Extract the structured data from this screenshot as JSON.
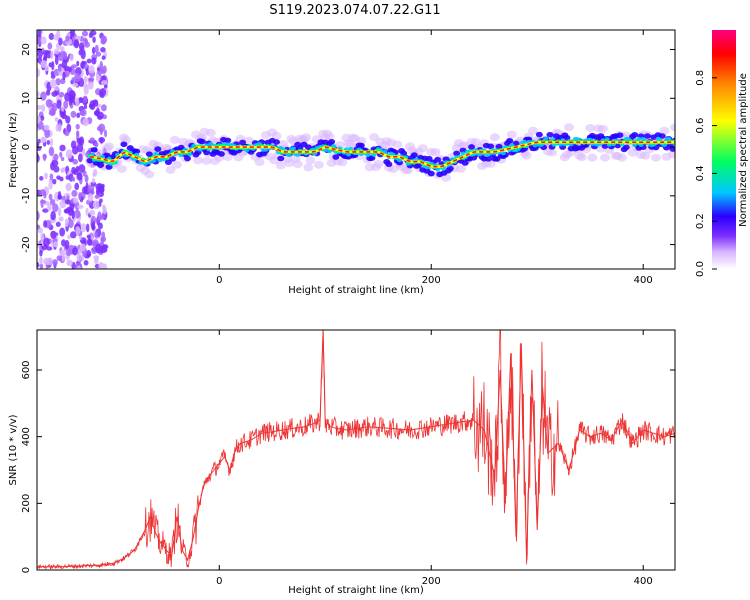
{
  "figure_title": "S119.2023.074.07.22.G11",
  "chart_data": [
    {
      "type": "heatmap",
      "xlabel": "Height of straight line (km)",
      "ylabel": "Frequency (Hz)",
      "xlim": [
        -172,
        430
      ],
      "ylim": [
        -25,
        24
      ],
      "xticks": [
        0,
        200,
        400
      ],
      "yticks": [
        -20,
        -10,
        0,
        10,
        20
      ],
      "grid": false,
      "colorbar": {
        "label": "Normalized spectral amplitude",
        "range": [
          0,
          1
        ],
        "ticks": [
          0.0,
          0.2,
          0.4,
          0.6,
          0.8
        ],
        "colormap": [
          "#ffffff",
          "#d9b6ff",
          "#7b2cff",
          "#2a00ff",
          "#00c8ff",
          "#00ff60",
          "#ffff00",
          "#ff8000",
          "#ff0000",
          "#ff0080"
        ]
      },
      "ridge": {
        "x": [
          -120,
          -100,
          -90,
          -80,
          -70,
          -60,
          -50,
          -40,
          -30,
          -20,
          0,
          20,
          40,
          50,
          60,
          70,
          80,
          90,
          100,
          120,
          140,
          150,
          160,
          170,
          180,
          190,
          200,
          210,
          220,
          240,
          260,
          280,
          300,
          320,
          340,
          360,
          380,
          400,
          430
        ],
        "y": [
          -2,
          -3,
          -1,
          -2,
          -3,
          -2,
          -2,
          -1,
          -1,
          0,
          0,
          0,
          0,
          0,
          -1,
          -1,
          -1,
          -1,
          0,
          -1,
          -1,
          -1,
          -2,
          -2,
          -3,
          -3,
          -4,
          -4,
          -3,
          -1,
          -1,
          0,
          1,
          1,
          1,
          1,
          1,
          1,
          1
        ]
      }
    },
    {
      "type": "line",
      "xlabel": "Height of straight line (km)",
      "ylabel": "SNR (10 * v/v)",
      "xlim": [
        -172,
        430
      ],
      "ylim": [
        0,
        720
      ],
      "xticks": [
        0,
        200,
        400
      ],
      "yticks": [
        0,
        200,
        400,
        600
      ],
      "grid": false,
      "series": [
        {
          "color": "#ee3333",
          "x": [
            -172,
            -150,
            -130,
            -110,
            -100,
            -90,
            -80,
            -70,
            -65,
            -60,
            -55,
            -50,
            -45,
            -40,
            -35,
            -30,
            -25,
            -20,
            -15,
            -10,
            -5,
            0,
            5,
            10,
            15,
            20,
            30,
            40,
            50,
            60,
            70,
            80,
            90,
            95,
            98,
            100,
            102,
            105,
            110,
            120,
            140,
            160,
            180,
            200,
            220,
            240,
            250,
            260,
            265,
            270,
            275,
            280,
            285,
            290,
            295,
            300,
            305,
            310,
            320,
            330,
            340,
            350,
            360,
            370,
            380,
            390,
            400,
            410,
            420,
            430
          ],
          "y": [
            10,
            10,
            12,
            15,
            20,
            35,
            60,
            120,
            160,
            110,
            80,
            60,
            40,
            160,
            60,
            30,
            90,
            180,
            250,
            280,
            300,
            320,
            340,
            300,
            360,
            380,
            390,
            410,
            415,
            420,
            425,
            430,
            440,
            450,
            720,
            430,
            440,
            430,
            425,
            420,
            430,
            425,
            420,
            430,
            440,
            450,
            420,
            280,
            600,
            200,
            650,
            100,
            680,
            30,
            600,
            120,
            550,
            350,
            380,
            300,
            420,
            400,
            410,
            390,
            450,
            380,
            420,
            410,
            400,
            410
          ]
        }
      ]
    }
  ]
}
